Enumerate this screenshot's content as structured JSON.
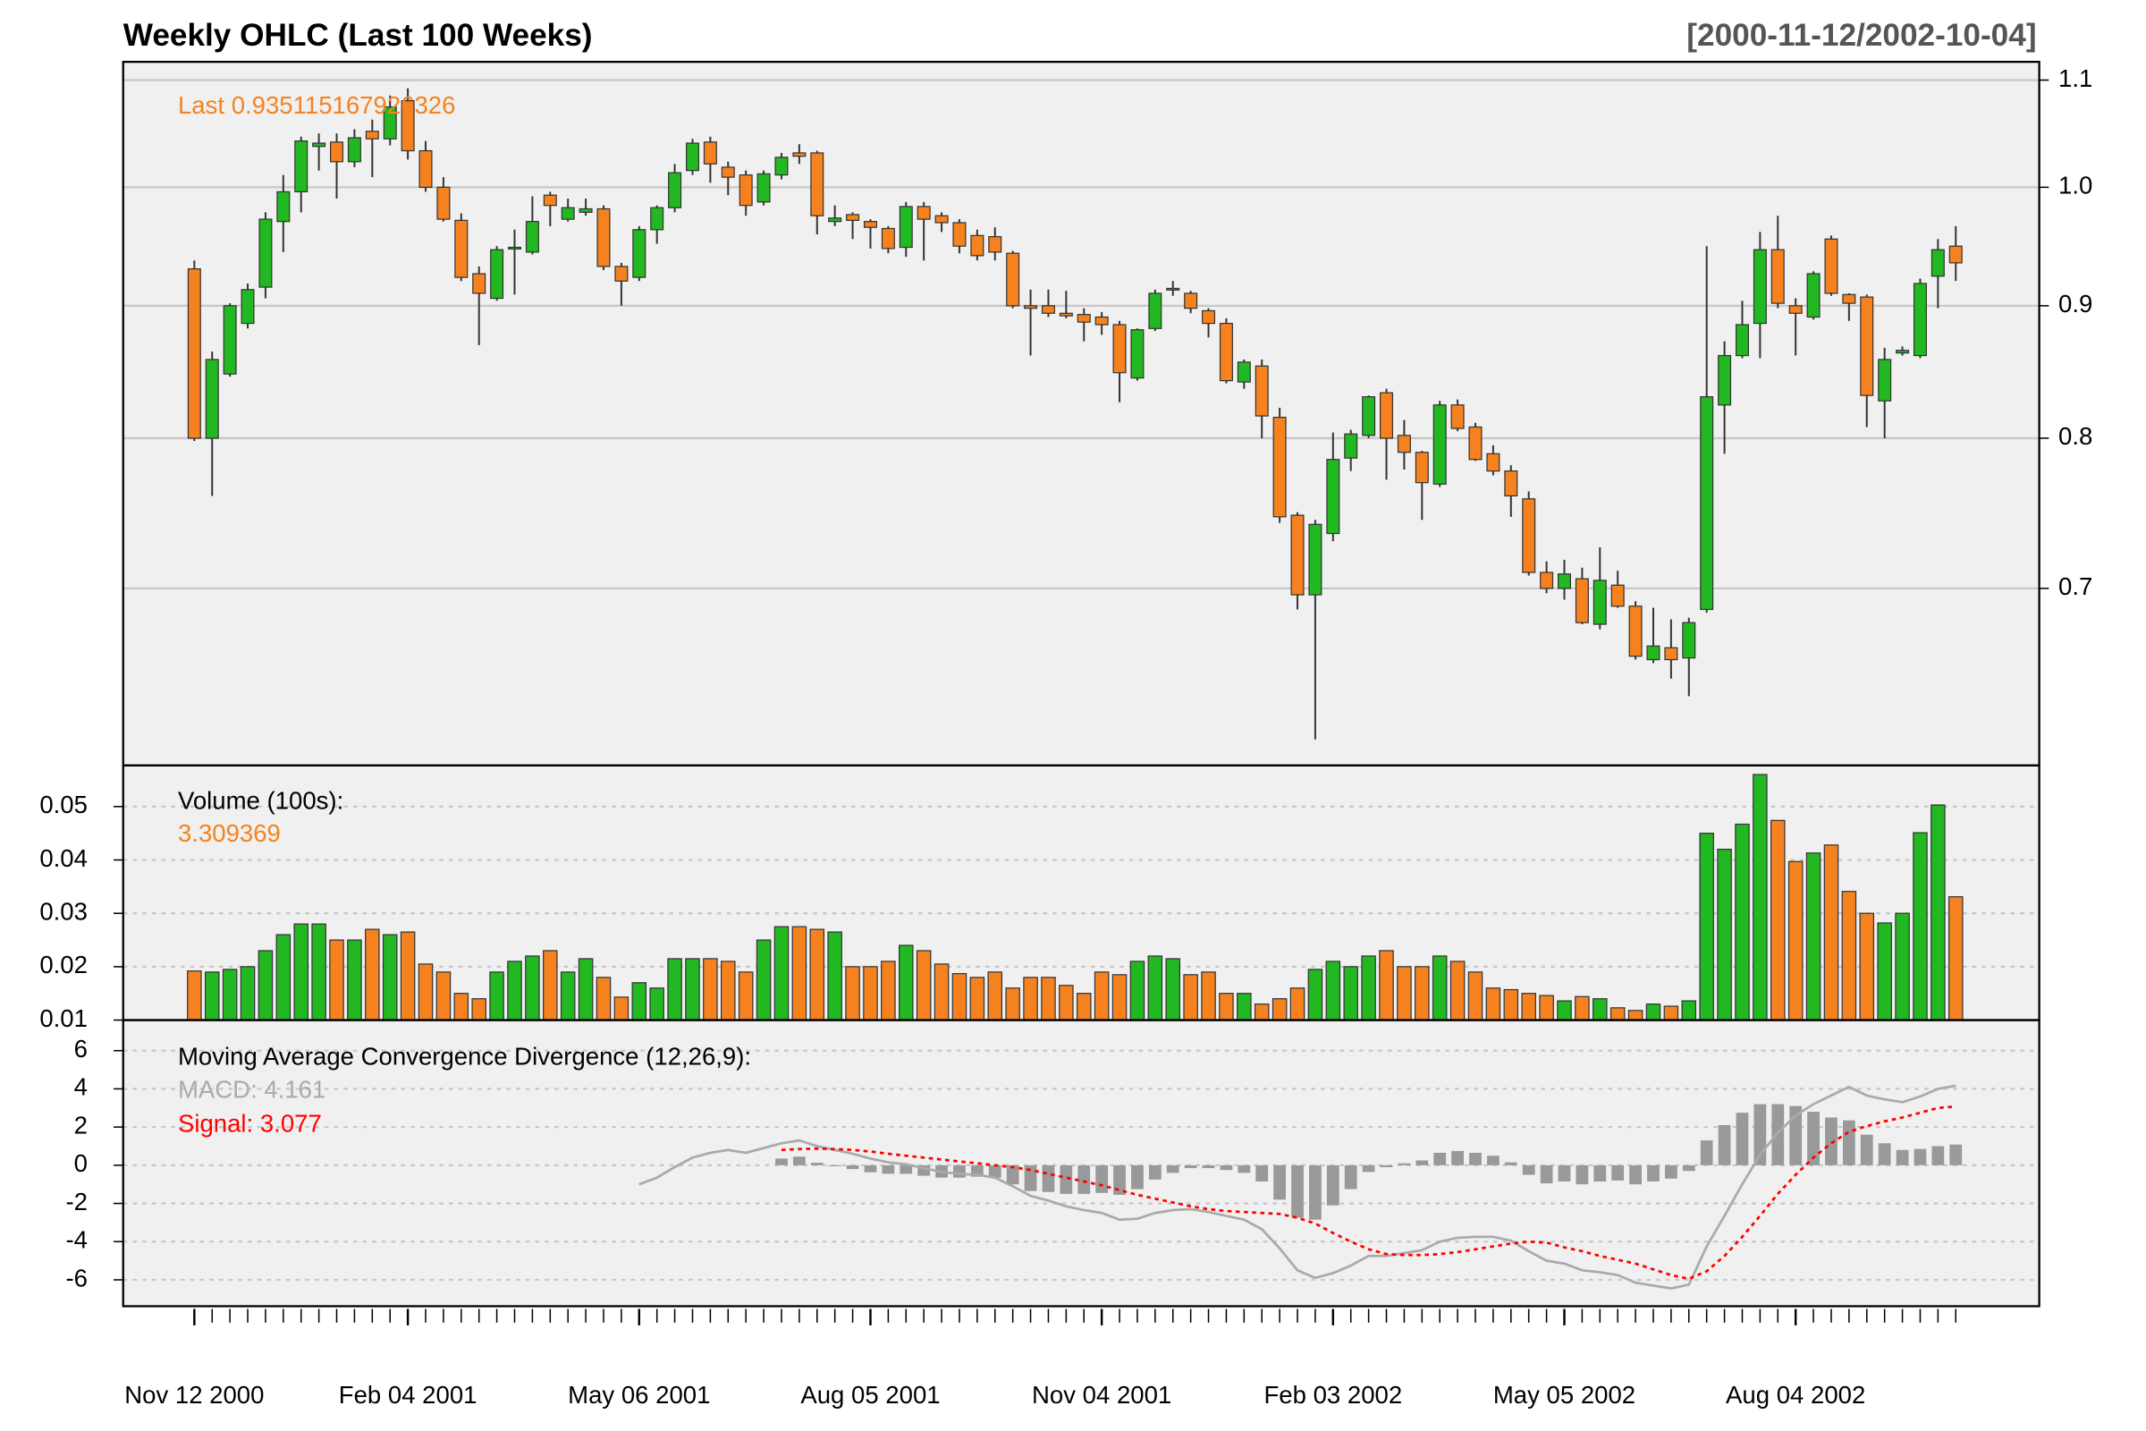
{
  "chart_data": [
    {
      "type": "candlestick",
      "title": "Weekly OHLC (Last 100 Weeks)",
      "subtitle": "[2000-11-12/2002-10-04]",
      "annotation": "Last 0.935115167926326",
      "categories": [
        "Nov 12 2000",
        null,
        null,
        null,
        null,
        null,
        null,
        null,
        null,
        null,
        null,
        null,
        "Feb 04 2001",
        null,
        null,
        null,
        null,
        null,
        null,
        null,
        null,
        null,
        null,
        null,
        null,
        "May 06 2001",
        null,
        null,
        null,
        null,
        null,
        null,
        null,
        null,
        null,
        null,
        null,
        null,
        "Aug 05 2001",
        null,
        null,
        null,
        null,
        null,
        null,
        null,
        null,
        null,
        null,
        null,
        null,
        "Nov 04 2001",
        null,
        null,
        null,
        null,
        null,
        null,
        null,
        null,
        null,
        null,
        null,
        null,
        "Feb 03 2002",
        null,
        null,
        null,
        null,
        null,
        null,
        null,
        null,
        null,
        null,
        null,
        null,
        "May 05 2002",
        null,
        null,
        null,
        null,
        null,
        null,
        null,
        null,
        null,
        null,
        null,
        null,
        "Aug 04 2002",
        null,
        null,
        null,
        null,
        null,
        null,
        null,
        null,
        null
      ],
      "open": [
        0.93,
        0.8,
        0.847,
        0.886,
        0.915,
        0.97,
        0.996,
        1.037,
        1.041,
        1.023,
        1.051,
        1.044,
        1.08,
        1.033,
        1.0,
        0.971,
        0.926,
        0.906,
        0.947,
        0.944,
        0.993,
        0.972,
        0.978,
        0.981,
        0.932,
        0.923,
        0.963,
        0.982,
        1.015,
        1.041,
        1.018,
        1.011,
        0.987,
        1.011,
        1.031,
        1.031,
        0.97,
        0.976,
        0.97,
        0.964,
        0.948,
        0.983,
        0.975,
        0.969,
        0.958,
        0.957,
        0.943,
        0.9,
        0.9,
        0.894,
        0.893,
        0.891,
        0.885,
        0.844,
        0.882,
        0.913,
        0.91,
        0.896,
        0.886,
        0.841,
        0.853,
        0.815,
        0.747,
        0.696,
        0.735,
        0.786,
        0.802,
        0.833,
        0.802,
        0.79,
        0.768,
        0.824,
        0.808,
        0.789,
        0.777,
        0.758,
        0.71,
        0.7,
        0.706,
        0.678,
        0.702,
        0.689,
        0.657,
        0.664,
        0.658,
        0.687,
        0.824,
        0.861,
        0.886,
        0.946,
        0.9,
        0.891,
        0.955,
        0.909,
        0.907,
        0.827,
        0.863,
        0.861,
        0.924,
        0.949
      ],
      "high": [
        0.937,
        0.864,
        0.902,
        0.918,
        0.978,
        1.011,
        1.046,
        1.049,
        1.049,
        1.053,
        1.062,
        1.085,
        1.092,
        1.042,
        1.009,
        0.977,
        0.932,
        0.949,
        0.963,
        0.992,
        0.996,
        0.99,
        0.99,
        0.984,
        0.935,
        0.966,
        0.984,
        1.021,
        1.044,
        1.046,
        1.023,
        1.015,
        1.015,
        1.031,
        1.039,
        1.033,
        0.984,
        0.978,
        0.972,
        0.966,
        0.987,
        0.987,
        0.978,
        0.972,
        0.963,
        0.965,
        0.945,
        0.913,
        0.913,
        0.912,
        0.898,
        0.895,
        0.888,
        0.882,
        0.913,
        0.92,
        0.912,
        0.898,
        0.89,
        0.858,
        0.858,
        0.822,
        0.749,
        0.744,
        0.804,
        0.806,
        0.831,
        0.836,
        0.813,
        0.791,
        0.827,
        0.828,
        0.811,
        0.795,
        0.781,
        0.763,
        0.717,
        0.718,
        0.713,
        0.726,
        0.711,
        0.692,
        0.688,
        0.681,
        0.682,
        0.949,
        0.872,
        0.904,
        0.961,
        0.975,
        0.906,
        0.928,
        0.958,
        0.91,
        0.909,
        0.867,
        0.868,
        0.922,
        0.955,
        0.966
      ],
      "low": [
        0.798,
        0.76,
        0.845,
        0.882,
        0.906,
        0.944,
        0.978,
        1.015,
        0.99,
        1.018,
        1.009,
        1.038,
        1.025,
        0.996,
        0.97,
        0.92,
        0.869,
        0.904,
        0.909,
        0.942,
        0.966,
        0.97,
        0.975,
        0.929,
        0.9,
        0.92,
        0.951,
        0.978,
        1.011,
        1.004,
        0.993,
        0.975,
        0.984,
        1.007,
        1.021,
        0.959,
        0.966,
        0.955,
        0.947,
        0.943,
        0.94,
        0.937,
        0.961,
        0.943,
        0.937,
        0.937,
        0.898,
        0.861,
        0.891,
        0.89,
        0.872,
        0.877,
        0.826,
        0.842,
        0.88,
        0.908,
        0.894,
        0.875,
        0.84,
        0.836,
        0.8,
        0.742,
        0.687,
        0.612,
        0.73,
        0.777,
        0.8,
        0.771,
        0.778,
        0.744,
        0.766,
        0.805,
        0.784,
        0.774,
        0.746,
        0.708,
        0.697,
        0.693,
        0.678,
        0.675,
        0.688,
        0.657,
        0.655,
        0.646,
        0.636,
        0.685,
        0.789,
        0.859,
        0.859,
        0.898,
        0.861,
        0.889,
        0.908,
        0.888,
        0.808,
        0.8,
        0.861,
        0.859,
        0.898,
        0.92
      ],
      "close": [
        0.8,
        0.858,
        0.9,
        0.913,
        0.972,
        0.996,
        1.042,
        1.04,
        1.023,
        1.045,
        1.044,
        1.074,
        1.033,
        1.0,
        0.972,
        0.923,
        0.91,
        0.946,
        0.948,
        0.97,
        0.984,
        0.982,
        0.981,
        0.932,
        0.92,
        0.963,
        0.982,
        1.013,
        1.04,
        1.021,
        1.009,
        0.984,
        1.012,
        1.027,
        1.028,
        0.975,
        0.973,
        0.971,
        0.965,
        0.947,
        0.983,
        0.972,
        0.969,
        0.949,
        0.941,
        0.944,
        0.9,
        0.898,
        0.894,
        0.892,
        0.887,
        0.885,
        0.848,
        0.881,
        0.91,
        0.914,
        0.898,
        0.886,
        0.842,
        0.856,
        0.816,
        0.746,
        0.696,
        0.741,
        0.785,
        0.803,
        0.83,
        0.8,
        0.79,
        0.769,
        0.824,
        0.807,
        0.785,
        0.777,
        0.76,
        0.71,
        0.7,
        0.709,
        0.679,
        0.705,
        0.689,
        0.659,
        0.665,
        0.657,
        0.679,
        0.83,
        0.861,
        0.885,
        0.946,
        0.902,
        0.894,
        0.926,
        0.91,
        0.902,
        0.831,
        0.858,
        0.865,
        0.918,
        0.946,
        0.935
      ],
      "up_color": "#22b822",
      "down_color": "#f5821f",
      "annotation_color": "#f5821f",
      "log_scale": true,
      "ylim": [
        0.598,
        1.118
      ],
      "yticks": [
        0.7,
        0.8,
        0.9,
        {
          "value": 1,
          "label": "1.0"
        },
        1.1
      ],
      "grid": true
    },
    {
      "type": "bar",
      "title": "Volume (100s):",
      "annotation": "3.309369",
      "annotation_color": "#f5821f",
      "values": [
        0.0192,
        0.019,
        0.0195,
        0.02,
        0.023,
        0.026,
        0.028,
        0.028,
        0.025,
        0.025,
        0.027,
        0.026,
        0.0265,
        0.0205,
        0.019,
        0.015,
        0.014,
        0.019,
        0.021,
        0.022,
        0.023,
        0.019,
        0.0215,
        0.018,
        0.0143,
        0.017,
        0.016,
        0.0215,
        0.0215,
        0.0215,
        0.021,
        0.019,
        0.025,
        0.0275,
        0.0275,
        0.027,
        0.0265,
        0.02,
        0.02,
        0.021,
        0.024,
        0.023,
        0.0205,
        0.0187,
        0.018,
        0.019,
        0.016,
        0.018,
        0.018,
        0.0165,
        0.015,
        0.019,
        0.0185,
        0.021,
        0.022,
        0.0215,
        0.0185,
        0.019,
        0.015,
        0.015,
        0.013,
        0.014,
        0.016,
        0.0195,
        0.021,
        0.02,
        0.022,
        0.023,
        0.02,
        0.02,
        0.022,
        0.021,
        0.019,
        0.016,
        0.0157,
        0.015,
        0.0146,
        0.0136,
        0.0144,
        0.014,
        0.0123,
        0.0118,
        0.013,
        0.0126,
        0.0136,
        0.045,
        0.042,
        0.0467,
        0.056,
        0.0474,
        0.0397,
        0.0413,
        0.0428,
        0.0341,
        0.03,
        0.0282,
        0.03,
        0.0451,
        0.0503,
        0.0331
      ],
      "ylim": [
        0.01,
        0.0577
      ],
      "yticks": [
        0.01,
        0.02,
        0.03,
        0.04,
        0.05
      ],
      "grid": true
    },
    {
      "type": "macd",
      "title": "Moving Average Convergence Divergence (12,26,9):",
      "series": [
        {
          "name": "MACD: 4.161",
          "color": "#aaaaaa",
          "style": "line",
          "values": [
            null,
            null,
            null,
            null,
            null,
            null,
            null,
            null,
            null,
            null,
            null,
            null,
            null,
            null,
            null,
            null,
            null,
            null,
            null,
            null,
            null,
            null,
            null,
            null,
            null,
            -1.0,
            -0.65,
            -0.1,
            0.4,
            0.65,
            0.8,
            0.65,
            0.9,
            1.15,
            1.3,
            1.0,
            0.8,
            0.6,
            0.35,
            0.15,
            0.05,
            -0.15,
            -0.35,
            -0.45,
            -0.5,
            -0.65,
            -1.1,
            -1.6,
            -1.85,
            -2.15,
            -2.35,
            -2.5,
            -2.85,
            -2.8,
            -2.5,
            -2.35,
            -2.3,
            -2.45,
            -2.65,
            -2.85,
            -3.35,
            -4.35,
            -5.5,
            -5.9,
            -5.65,
            -5.25,
            -4.75,
            -4.75,
            -4.6,
            -4.45,
            -4.0,
            -3.8,
            -3.75,
            -3.75,
            -3.95,
            -4.5,
            -5.0,
            -5.15,
            -5.5,
            -5.6,
            -5.75,
            -6.15,
            -6.3,
            -6.45,
            -6.25,
            -4.25,
            -2.65,
            -1.0,
            0.55,
            1.7,
            2.6,
            3.2,
            3.65,
            4.1,
            3.65,
            3.45,
            3.3,
            3.6,
            4.0,
            4.161
          ]
        },
        {
          "name": "Signal: 3.077",
          "color": "#ff0000",
          "style": "dotted",
          "values": [
            null,
            null,
            null,
            null,
            null,
            null,
            null,
            null,
            null,
            null,
            null,
            null,
            null,
            null,
            null,
            null,
            null,
            null,
            null,
            null,
            null,
            null,
            null,
            null,
            null,
            null,
            null,
            null,
            null,
            null,
            null,
            null,
            null,
            0.8,
            0.85,
            0.87,
            0.85,
            0.8,
            0.72,
            0.6,
            0.5,
            0.4,
            0.3,
            0.2,
            0.1,
            0.0,
            -0.1,
            -0.25,
            -0.45,
            -0.65,
            -0.85,
            -1.05,
            -1.3,
            -1.55,
            -1.75,
            -1.95,
            -2.15,
            -2.3,
            -2.4,
            -2.45,
            -2.5,
            -2.55,
            -2.75,
            -3.05,
            -3.55,
            -4.0,
            -4.4,
            -4.65,
            -4.7,
            -4.7,
            -4.65,
            -4.55,
            -4.4,
            -4.25,
            -4.1,
            -4.0,
            -4.05,
            -4.3,
            -4.5,
            -4.75,
            -4.95,
            -5.15,
            -5.45,
            -5.75,
            -5.95,
            -5.55,
            -4.75,
            -3.75,
            -2.65,
            -1.5,
            -0.5,
            0.4,
            1.15,
            1.75,
            2.05,
            2.3,
            2.5,
            2.75,
            3.0,
            3.077
          ]
        },
        {
          "color": "#999999",
          "style": "bar",
          "values": [
            null,
            null,
            null,
            null,
            null,
            null,
            null,
            null,
            null,
            null,
            null,
            null,
            null,
            null,
            null,
            null,
            null,
            null,
            null,
            null,
            null,
            null,
            null,
            null,
            null,
            null,
            null,
            null,
            null,
            null,
            null,
            null,
            null,
            0.35,
            0.45,
            0.13,
            -0.05,
            -0.2,
            -0.37,
            -0.45,
            -0.45,
            -0.55,
            -0.65,
            -0.65,
            -0.6,
            -0.65,
            -1.0,
            -1.35,
            -1.4,
            -1.5,
            -1.5,
            -1.45,
            -1.55,
            -1.25,
            -0.75,
            -0.4,
            -0.15,
            -0.15,
            -0.25,
            -0.4,
            -0.85,
            -1.8,
            -2.75,
            -2.85,
            -2.1,
            -1.25,
            -0.35,
            -0.1,
            0.1,
            0.25,
            0.65,
            0.75,
            0.65,
            0.5,
            0.15,
            -0.5,
            -0.95,
            -0.85,
            -1.0,
            -0.85,
            -0.8,
            -1.0,
            -0.85,
            -0.7,
            -0.3,
            1.3,
            2.1,
            2.75,
            3.2,
            3.2,
            3.1,
            2.8,
            2.5,
            2.35,
            1.6,
            1.15,
            0.8,
            0.85,
            1.0,
            1.084
          ]
        }
      ],
      "ylim": [
        -7.38,
        7.6
      ],
      "yticks": [
        -6,
        -4,
        -2,
        0,
        2,
        4,
        6
      ],
      "grid": true
    }
  ]
}
